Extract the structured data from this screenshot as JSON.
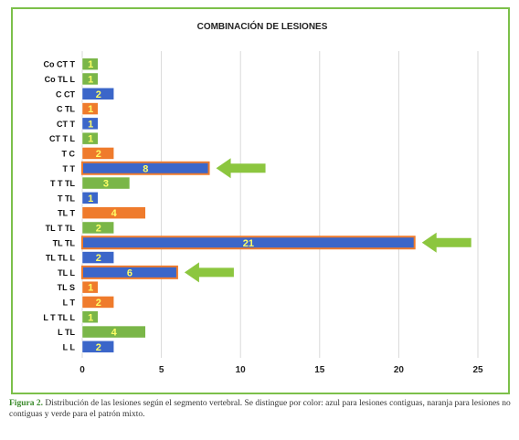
{
  "chart_data": {
    "type": "bar",
    "orientation": "horizontal",
    "title": "COMBINACIÓN DE LESIONES",
    "categories": [
      "Co CT T",
      "Co TL L",
      "C CT",
      "C TL",
      "CT T",
      "CT T L",
      "T C",
      "T T",
      "T T TL",
      "T TL",
      "TL T",
      "TL T TL",
      "TL TL",
      "TL TL L",
      "TL L",
      "TL S",
      "L T",
      "L T TL L",
      "L TL",
      "L L"
    ],
    "values": [
      1,
      1,
      2,
      1,
      1,
      1,
      2,
      8,
      3,
      1,
      4,
      2,
      21,
      2,
      6,
      1,
      2,
      1,
      4,
      2
    ],
    "bar_colors": [
      "green",
      "green",
      "blue",
      "orange",
      "blue",
      "green",
      "orange",
      "blue",
      "green",
      "blue",
      "orange",
      "green",
      "blue",
      "blue",
      "blue",
      "orange",
      "orange",
      "green",
      "green",
      "blue"
    ],
    "color_hex": {
      "blue": "#3b66c9",
      "orange": "#ef7b2c",
      "green": "#7ab648"
    },
    "highlighted_categories": [
      "T T",
      "TL TL",
      "TL L"
    ],
    "xlim": [
      0,
      25
    ],
    "xticks": [
      0,
      5,
      10,
      15,
      20,
      25
    ],
    "grid": true
  },
  "caption": {
    "label": "Figura 2.",
    "text": " Distribución de las lesiones según el segmento vertebral. Se distingue por color: azul para lesiones contiguas, naranja para lesiones no contiguas y verde para el patrón mixto."
  },
  "colors": {
    "frame": "#7cc04a",
    "arrow": "#8cc63f",
    "highlight_outline": "#ef7b2c",
    "grid": "#d9d9d9"
  }
}
